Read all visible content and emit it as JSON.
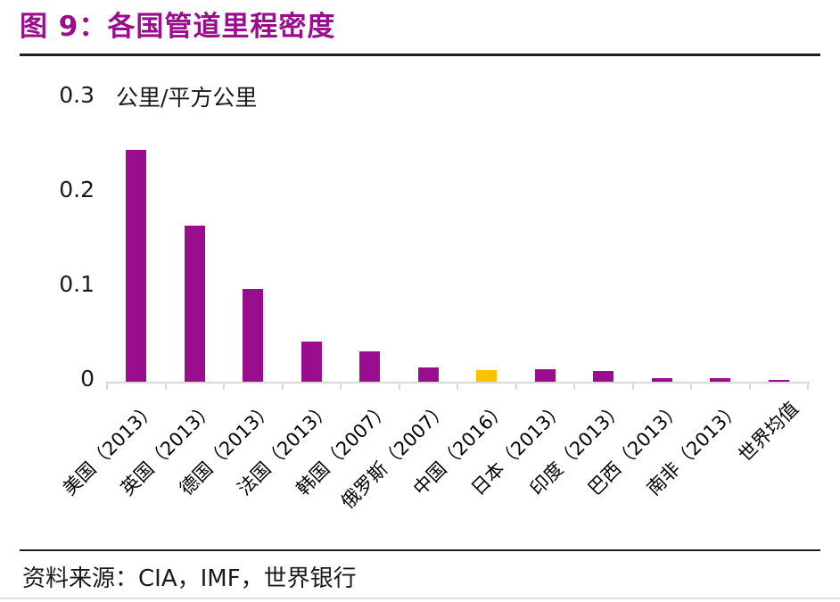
{
  "header": {
    "title": "图 9：各国管道里程密度"
  },
  "footer": {
    "source": "资料来源：CIA，IMF，世界银行"
  },
  "chart_data": {
    "type": "bar",
    "title": "图 9：各国管道里程密度",
    "unit_label": "公里/平方公里",
    "ylabel": "公里/平方公里",
    "xlabel": "",
    "categories": [
      "美国（2013）",
      "英国（2013）",
      "德国（2013）",
      "法国（2013）",
      "韩国（2007）",
      "俄罗斯（2007）",
      "中国（2016）",
      "日本（2013）",
      "印度（2013）",
      "巴西（2013）",
      "南非（2013）",
      "世界均值"
    ],
    "values": [
      0.245,
      0.165,
      0.098,
      0.042,
      0.032,
      0.015,
      0.012,
      0.013,
      0.011,
      0.004,
      0.004,
      0.002
    ],
    "ylim": [
      0,
      0.3
    ],
    "yticks": [
      {
        "label": "0",
        "value": 0
      },
      {
        "label": "0.1",
        "value": 0.1
      },
      {
        "label": "0.2",
        "value": 0.2
      },
      {
        "label": "0.3",
        "value": 0.3
      }
    ],
    "grid": false,
    "legend_position": "none",
    "bar_color": "#9A0D8F",
    "highlight_index": 6,
    "highlight_color": "#FFC000",
    "axis_color": "#D9D9D9",
    "x_labels_rotation_deg": -45
  },
  "colors": {
    "title": "#9A0D8F",
    "rule_dark": "#1F1F1F",
    "rule_light": "#DCDCDC",
    "text": "#1A1A1A"
  }
}
